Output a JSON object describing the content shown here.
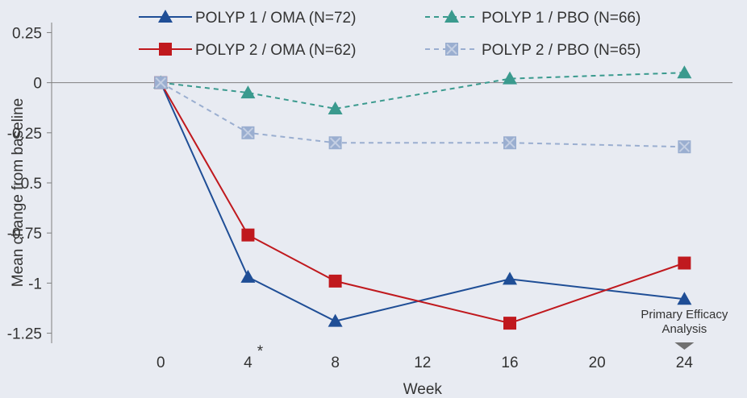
{
  "chart_data": {
    "type": "line",
    "xlabel": "Week",
    "ylabel": "Mean change from baseline",
    "xlim": [
      -5,
      26.5
    ],
    "ylim": [
      -1.3,
      0.3
    ],
    "x_ticks": [
      {
        "value": 0,
        "label": "0",
        "mark": ""
      },
      {
        "value": 4,
        "label": "4",
        "mark": "*"
      },
      {
        "value": 8,
        "label": "8",
        "mark": ""
      },
      {
        "value": 12,
        "label": "12",
        "mark": ""
      },
      {
        "value": 16,
        "label": "16",
        "mark": ""
      },
      {
        "value": 20,
        "label": "20",
        "mark": ""
      },
      {
        "value": 24,
        "label": "24",
        "mark": ""
      }
    ],
    "y_ticks": [
      {
        "value": 0.25,
        "label": "0.25"
      },
      {
        "value": 0,
        "label": "0"
      },
      {
        "value": -0.25,
        "label": "-0.25"
      },
      {
        "value": -0.5,
        "label": "-0.5"
      },
      {
        "value": -0.75,
        "label": "-0.75"
      },
      {
        "value": -1,
        "label": "-1"
      },
      {
        "value": -1.25,
        "label": "-1.25"
      }
    ],
    "x": [
      0,
      4,
      8,
      16,
      24
    ],
    "series": [
      {
        "name": "POLYP 1 / OMA (N=72)",
        "values": [
          0,
          -0.97,
          -1.19,
          -0.98,
          -1.08
        ],
        "color": "#1f4e96",
        "marker": "triangle",
        "dashed": false
      },
      {
        "name": "POLYP 2 / OMA (N=62)",
        "values": [
          0,
          -0.76,
          -0.99,
          -1.2,
          -0.9
        ],
        "color": "#c0191e",
        "marker": "square",
        "dashed": false
      },
      {
        "name": "POLYP 1 / PBO (N=66)",
        "values": [
          0,
          -0.05,
          -0.13,
          0.02,
          0.05
        ],
        "color": "#3a9a8e",
        "marker": "triangle",
        "dashed": true
      },
      {
        "name": "POLYP 2 / PBO (N=65)",
        "values": [
          0,
          -0.25,
          -0.3,
          -0.3,
          -0.32
        ],
        "color": "#9aaed0",
        "marker": "xsquare",
        "dashed": true
      }
    ],
    "annotation": {
      "lines": [
        "Primary Efficacy",
        "Analysis"
      ],
      "x": 24
    },
    "legend": "top, two columns"
  }
}
